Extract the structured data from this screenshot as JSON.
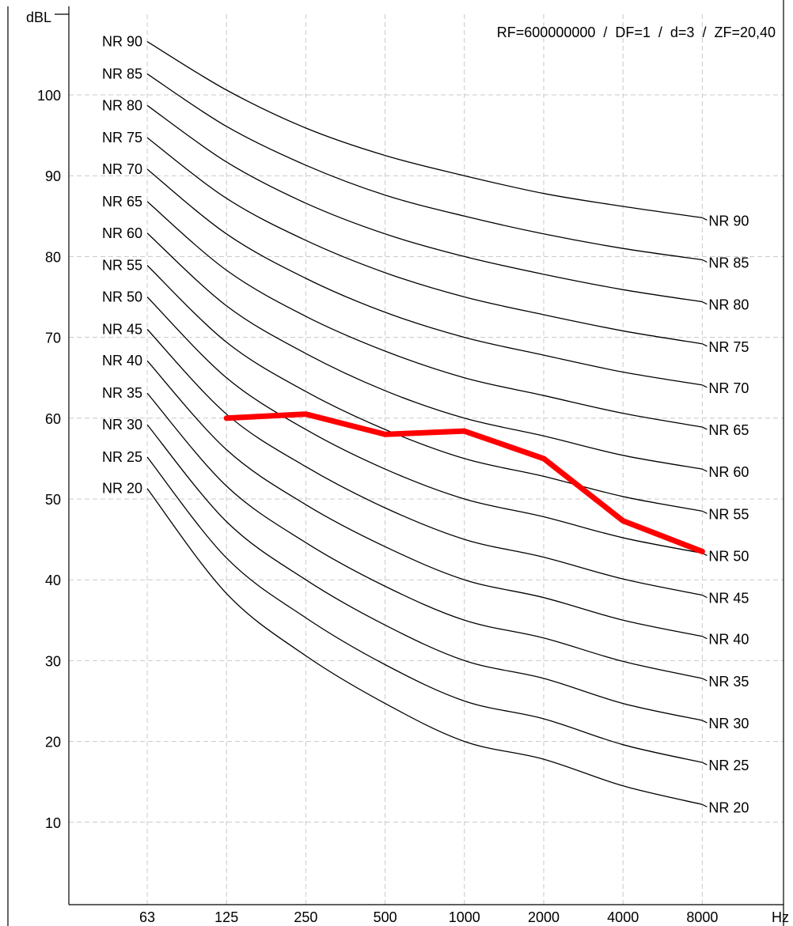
{
  "chart_data": {
    "type": "line",
    "info_text": "RF=600000000  /  DF=1  /  d=3  /  ZF=20,40",
    "y_unit_label": "dBL",
    "x_unit_label": "Hz",
    "x_categories": [
      "63",
      "125",
      "250",
      "500",
      "1000",
      "2000",
      "4000",
      "8000"
    ],
    "y_ticks": [
      10,
      20,
      30,
      40,
      50,
      60,
      70,
      80,
      90,
      100
    ],
    "ylim": [
      0,
      107
    ],
    "grid": true,
    "nr_curves": [
      {
        "name": "NR 90",
        "values": [
          106.6,
          100.6,
          95.9,
          92.5,
          90.0,
          87.8,
          86.2,
          84.8
        ]
      },
      {
        "name": "NR 85",
        "values": [
          102.6,
          96.1,
          91.3,
          87.6,
          85.0,
          82.8,
          81.0,
          79.6
        ]
      },
      {
        "name": "NR 80",
        "values": [
          98.7,
          91.7,
          86.6,
          82.8,
          80.0,
          77.8,
          75.9,
          74.4
        ]
      },
      {
        "name": "NR 75",
        "values": [
          94.7,
          87.2,
          82.0,
          78.0,
          75.0,
          72.8,
          70.8,
          69.2
        ]
      },
      {
        "name": "NR 70",
        "values": [
          90.8,
          82.8,
          77.3,
          73.1,
          70.0,
          67.8,
          65.7,
          64.1
        ]
      },
      {
        "name": "NR 65",
        "values": [
          86.8,
          78.3,
          72.6,
          68.3,
          65.0,
          62.8,
          60.6,
          58.9
        ]
      },
      {
        "name": "NR 60",
        "values": [
          82.9,
          73.9,
          68.0,
          63.4,
          60.0,
          57.8,
          55.4,
          53.7
        ]
      },
      {
        "name": "NR 55",
        "values": [
          78.9,
          69.4,
          63.3,
          58.6,
          55.0,
          52.8,
          50.3,
          48.5
        ]
      },
      {
        "name": "NR 50",
        "values": [
          75.0,
          65.0,
          58.6,
          53.7,
          50.0,
          47.8,
          45.2,
          43.3
        ]
      },
      {
        "name": "NR 45",
        "values": [
          71.0,
          60.5,
          54.0,
          48.9,
          45.0,
          42.8,
          40.1,
          38.1
        ]
      },
      {
        "name": "NR 40",
        "values": [
          67.1,
          56.1,
          49.3,
          44.1,
          40.0,
          37.8,
          35.0,
          33.0
        ]
      },
      {
        "name": "NR 35",
        "values": [
          63.1,
          51.6,
          44.6,
          39.2,
          35.0,
          32.8,
          29.9,
          27.8
        ]
      },
      {
        "name": "NR 30",
        "values": [
          59.2,
          47.2,
          40.0,
          34.4,
          30.0,
          27.8,
          24.7,
          22.6
        ]
      },
      {
        "name": "NR 25",
        "values": [
          55.2,
          42.7,
          35.3,
          29.5,
          25.0,
          22.8,
          19.6,
          17.4
        ]
      },
      {
        "name": "NR 20",
        "values": [
          51.3,
          38.3,
          30.6,
          24.7,
          20.0,
          17.8,
          14.5,
          12.2
        ]
      }
    ],
    "measured_series": {
      "color": "#ff0000",
      "x_from_category": 1,
      "values": [
        60.0,
        60.5,
        58.0,
        58.4,
        55.0,
        47.3,
        43.5
      ]
    }
  }
}
